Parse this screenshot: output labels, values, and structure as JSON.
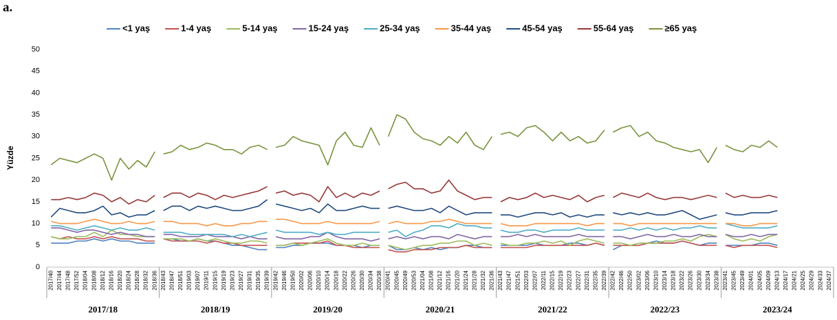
{
  "chart_data": {
    "type": "line",
    "panel_label": "a.",
    "y_label": "Yüzde",
    "ylim": [
      0,
      50
    ],
    "yticks": [
      0,
      5,
      10,
      15,
      20,
      25,
      30,
      35,
      40,
      45,
      50
    ],
    "grid": false,
    "legend": "top",
    "seasons": [
      {
        "label": "2017/18",
        "categories": [
          "2017/40",
          "2017/44",
          "2017/48",
          "2017/52",
          "2018/04",
          "2018/08",
          "2018/12",
          "2018/16",
          "2018/20",
          "2018/24",
          "2018/28",
          "2018/32",
          "2018/36"
        ]
      },
      {
        "label": "2018/19",
        "categories": [
          "2018/43",
          "2018/47",
          "2018/51",
          "2019/03",
          "2019/07",
          "2019/11",
          "2019/15",
          "2019/19",
          "2019/23",
          "2019/27",
          "2019/31",
          "2019/35",
          "2019/39"
        ]
      },
      {
        "label": "2019/20",
        "categories": [
          "2019/42",
          "2019/46",
          "2019/50",
          "2020/02",
          "2020/06",
          "2020/10",
          "2020/14",
          "2020/18",
          "2020/22",
          "2020/26",
          "2020/30",
          "2020/34",
          "2020/38"
        ]
      },
      {
        "label": "2020/21",
        "categories": [
          "2020/41",
          "2020/45",
          "2020/49",
          "2020/53",
          "2021/04",
          "2021/08",
          "2021/12",
          "2021/16",
          "2021/20",
          "2021/24",
          "2021/28",
          "2021/32",
          "2021/36"
        ]
      },
      {
        "label": "2021/22",
        "categories": [
          "2021/43",
          "2021/47",
          "2021/51",
          "2022/03",
          "2022/07",
          "2022/11",
          "2022/15",
          "2022/19",
          "2022/23",
          "2022/27",
          "2022/31",
          "2022/35",
          "2022/39"
        ]
      },
      {
        "label": "2022/23",
        "categories": [
          "2022/42",
          "2022/46",
          "2022/50",
          "2023/02",
          "2023/06",
          "2023/10",
          "2023/14",
          "2023/18",
          "2023/22",
          "2023/26",
          "2023/30",
          "2023/34",
          "2023/38"
        ]
      },
      {
        "label": "2023/24",
        "categories": [
          "2023/41",
          "2023/45",
          "2023/49",
          "2024/01",
          "2024/05",
          "2024/09",
          "2024/13",
          "2024/17",
          "2024/21",
          "2024/25",
          "2024/29",
          "2024/33",
          "2024/37"
        ]
      }
    ],
    "series": [
      {
        "name": "<1 yaş",
        "color": "#4f81bd",
        "values": [
          [
            5.5,
            5.5,
            5.5,
            6,
            6,
            6.5,
            6,
            6.5,
            6,
            6,
            5.5,
            5.5,
            5.5
          ],
          [
            6.5,
            6.5,
            6,
            6,
            6.5,
            6,
            6,
            5.5,
            5,
            5,
            4.5,
            4,
            4
          ],
          [
            4.5,
            4.5,
            5,
            5,
            5.5,
            5.5,
            5.5,
            5,
            5,
            5,
            4.5,
            5,
            5
          ],
          [
            5,
            4,
            4,
            4.5,
            4,
            4.5,
            4,
            4.5,
            4.5,
            5,
            5,
            4.5,
            4.5
          ],
          [
            5,
            5,
            5,
            5,
            5.5,
            5,
            5,
            5,
            5.5,
            5.5,
            5,
            5.5,
            5
          ],
          [
            4,
            5,
            5,
            5,
            5.5,
            6,
            5.5,
            5.5,
            6,
            5.5,
            5,
            5.5,
            5.5
          ],
          [
            5,
            5,
            5,
            5,
            5.5,
            5.5,
            5,
            null,
            null,
            null,
            null,
            null,
            null
          ]
        ]
      },
      {
        "name": "1-4 yaş",
        "color": "#c0504d",
        "values": [
          [
            7,
            6.5,
            7,
            6.5,
            6.5,
            7,
            6.5,
            7,
            6.5,
            6.5,
            6.5,
            6,
            6
          ],
          [
            6.5,
            6,
            6,
            6,
            6,
            5.5,
            6,
            5.5,
            5.5,
            5,
            5,
            5,
            5
          ],
          [
            5,
            5,
            5.5,
            5.5,
            5.5,
            5.5,
            6,
            5,
            5,
            4.5,
            4.5,
            4.5,
            4.5
          ],
          [
            4,
            3.5,
            3.5,
            4,
            4,
            4,
            4.5,
            4.5,
            4.5,
            5,
            4.5,
            4.5,
            4.5
          ],
          [
            4.5,
            4.5,
            4.5,
            4.5,
            5,
            5,
            5,
            5,
            5,
            5,
            5,
            5.5,
            5
          ],
          [
            5,
            5,
            5,
            5,
            5.5,
            5.5,
            5.5,
            5.5,
            6,
            5.5,
            5,
            5,
            5
          ],
          [
            5,
            4.5,
            5,
            5,
            5,
            5,
            4.5,
            null,
            null,
            null,
            null,
            null,
            null
          ]
        ]
      },
      {
        "name": "5-14 yaş",
        "color": "#9bbb59",
        "values": [
          [
            7,
            6.5,
            6.5,
            7,
            7,
            8,
            7,
            8.5,
            7.5,
            7.5,
            7,
            7,
            7
          ],
          [
            6.5,
            6.5,
            6.5,
            6,
            6.5,
            6,
            6.5,
            6,
            5.5,
            5.5,
            6,
            6,
            5.5
          ],
          [
            5,
            5,
            5.5,
            5,
            5.5,
            6,
            6.5,
            5.5,
            5,
            5,
            5.5,
            5,
            5
          ],
          [
            5,
            4.5,
            4,
            4.5,
            5,
            5,
            5.5,
            5.5,
            6,
            6,
            5,
            5.5,
            5
          ],
          [
            5.5,
            5,
            5,
            5.5,
            5.5,
            6,
            5.5,
            6,
            5,
            6,
            6.5,
            6,
            5.5
          ],
          [
            5.5,
            5.5,
            5,
            5.5,
            5.5,
            5.5,
            6,
            6,
            6.5,
            6,
            7,
            7.5,
            7
          ],
          [
            7.5,
            6.5,
            6,
            6.5,
            6,
            7,
            7.5,
            null,
            null,
            null,
            null,
            null,
            null
          ]
        ]
      },
      {
        "name": "15-24 yaş",
        "color": "#8064a2",
        "values": [
          [
            9,
            9,
            8.5,
            8,
            8.5,
            8.5,
            8,
            7.5,
            8,
            7.5,
            7.5,
            7,
            7
          ],
          [
            7.5,
            7.5,
            7,
            7,
            7,
            7.5,
            7,
            7,
            7,
            6.5,
            7,
            6.5,
            6.5
          ],
          [
            7,
            6.5,
            6.5,
            6.5,
            7,
            7,
            8,
            7,
            6.5,
            6.5,
            6.5,
            6,
            6.5
          ],
          [
            6.5,
            7,
            6.5,
            7,
            6.5,
            7,
            7,
            6.5,
            7.5,
            7,
            6.5,
            7,
            7
          ],
          [
            7,
            7,
            7.5,
            7,
            7.5,
            7,
            7,
            7,
            7,
            7.5,
            7,
            7,
            7
          ],
          [
            7,
            7,
            6.5,
            7,
            7.5,
            7,
            7,
            7.5,
            7,
            7,
            7.5,
            7,
            7
          ],
          [
            7.5,
            7,
            7,
            7.5,
            7,
            7.5,
            7.5,
            null,
            null,
            null,
            null,
            null,
            null
          ]
        ]
      },
      {
        "name": "25-34 yaş",
        "color": "#4bacc6",
        "values": [
          [
            9.5,
            9.5,
            9,
            8.5,
            9,
            9.5,
            9,
            8.5,
            9,
            8.5,
            8.5,
            9,
            8.5
          ],
          [
            8,
            8,
            8,
            7.5,
            7.5,
            7.5,
            7.5,
            7.5,
            7,
            7.5,
            7,
            7.5,
            8
          ],
          [
            8.5,
            8,
            8,
            8,
            8,
            7.5,
            8,
            7.5,
            7.5,
            8,
            8,
            8,
            8
          ],
          [
            8,
            8.5,
            7,
            8,
            8.5,
            9.5,
            9.5,
            9,
            10,
            9.5,
            9.5,
            9,
            9
          ],
          [
            8.5,
            8,
            8,
            8.5,
            8.5,
            8,
            8.5,
            8.5,
            8.5,
            9,
            8.5,
            8.5,
            8.5
          ],
          [
            8.5,
            8.5,
            9,
            8.5,
            9,
            8.5,
            9,
            8.5,
            9,
            9,
            9.5,
            9,
            9
          ],
          [
            10,
            9.5,
            9,
            9,
            9,
            9,
            9.5,
            null,
            null,
            null,
            null,
            null,
            null
          ]
        ]
      },
      {
        "name": "35-44 yaş",
        "color": "#f79646",
        "values": [
          [
            10.5,
            10,
            10,
            10,
            10.5,
            11,
            10.5,
            10,
            10,
            10.5,
            10,
            10,
            10.5
          ],
          [
            10.5,
            10.5,
            10,
            10,
            10,
            9.5,
            10,
            9.5,
            9.5,
            10,
            10,
            10.5,
            10.5
          ],
          [
            11,
            11,
            10.5,
            10,
            10,
            10,
            10.5,
            10,
            10,
            10,
            10,
            10,
            10.5
          ],
          [
            10,
            10.5,
            10,
            10,
            10,
            10.5,
            10.5,
            11,
            10.5,
            10,
            10,
            10,
            10
          ],
          [
            10,
            9.5,
            9.5,
            9.5,
            10,
            10,
            10,
            10,
            10,
            10,
            9.5,
            10,
            10
          ],
          [
            10,
            10,
            9.5,
            10,
            10,
            10,
            10,
            10,
            10,
            10,
            10,
            10,
            10
          ],
          [
            10,
            10,
            9.5,
            9.5,
            10,
            10,
            10,
            null,
            null,
            null,
            null,
            null,
            null
          ]
        ]
      },
      {
        "name": "45-54  yaş",
        "color": "#1f497d",
        "values": [
          [
            11.5,
            13.5,
            13,
            12.5,
            12.5,
            13,
            14,
            12,
            12.5,
            11.5,
            12,
            12,
            13
          ],
          [
            13,
            14,
            14,
            13,
            14,
            13.5,
            14,
            13.5,
            13,
            13,
            13.5,
            14,
            15.5
          ],
          [
            14.5,
            14,
            13.5,
            13,
            13.5,
            12.5,
            14.5,
            13,
            13,
            13.5,
            14,
            13.5,
            13.5
          ],
          [
            13.5,
            14,
            13.5,
            13,
            13,
            13.5,
            12.5,
            14,
            13,
            12,
            12.5,
            12.5,
            12.5
          ],
          [
            12,
            12,
            11.5,
            12,
            12.5,
            12.5,
            12,
            12.5,
            11.5,
            12,
            11.5,
            12,
            12
          ],
          [
            12.5,
            12,
            12.5,
            12,
            12.5,
            12,
            12,
            12.5,
            13,
            12,
            11,
            11.5,
            12
          ],
          [
            12.5,
            12,
            12,
            12.5,
            12.5,
            12.5,
            13,
            null,
            null,
            null,
            null,
            null,
            null
          ]
        ]
      },
      {
        "name": "55-64 yaş",
        "color": "#953735",
        "values": [
          [
            15.5,
            15.5,
            16,
            15.5,
            16,
            17,
            16.5,
            15,
            16,
            14.5,
            15.5,
            15,
            16.5
          ],
          [
            16,
            17,
            17,
            16,
            17,
            16.5,
            15.5,
            16.5,
            16,
            16.5,
            17,
            17.5,
            18.5
          ],
          [
            17,
            17.5,
            16.5,
            17,
            16.5,
            15,
            18.5,
            16,
            17,
            16,
            17,
            16.5,
            17.5
          ],
          [
            18,
            19,
            19.5,
            18,
            18,
            17,
            17.5,
            20,
            17.5,
            16.5,
            15.5,
            16,
            16
          ],
          [
            15,
            16,
            15.5,
            16,
            17,
            16,
            16.5,
            16,
            15.5,
            16.5,
            15,
            16,
            16.5
          ],
          [
            16,
            17,
            16.5,
            16,
            17,
            16,
            15.5,
            16,
            16,
            15.5,
            16,
            16.5,
            16
          ],
          [
            17,
            16,
            16.5,
            16,
            16,
            16.5,
            16,
            null,
            null,
            null,
            null,
            null,
            null
          ]
        ]
      },
      {
        "name": "≥65 yaş",
        "color": "#77933c",
        "values": [
          [
            23.5,
            25,
            24.5,
            24,
            25,
            26,
            25,
            20,
            25,
            22.5,
            24.5,
            23,
            26.5
          ],
          [
            26,
            26.5,
            28,
            27,
            27.5,
            28.5,
            28,
            27,
            27,
            26,
            27.5,
            28,
            27
          ],
          [
            27.5,
            28,
            30,
            29,
            28.5,
            28,
            23.5,
            29,
            31,
            28,
            27.5,
            32,
            28
          ],
          [
            30,
            35,
            34,
            31,
            29.5,
            29,
            28,
            30,
            28.5,
            31,
            28,
            27,
            30
          ],
          [
            30.5,
            31,
            30,
            32,
            32.5,
            31,
            29,
            31,
            29,
            30,
            28.5,
            29,
            31.5
          ],
          [
            31,
            32,
            32.5,
            30,
            31,
            29,
            28.5,
            27.5,
            27,
            26.5,
            27,
            24,
            27.5
          ],
          [
            28,
            27,
            26.5,
            28,
            27.5,
            29,
            27.5,
            null,
            null,
            null,
            null,
            null,
            null
          ]
        ]
      }
    ]
  }
}
